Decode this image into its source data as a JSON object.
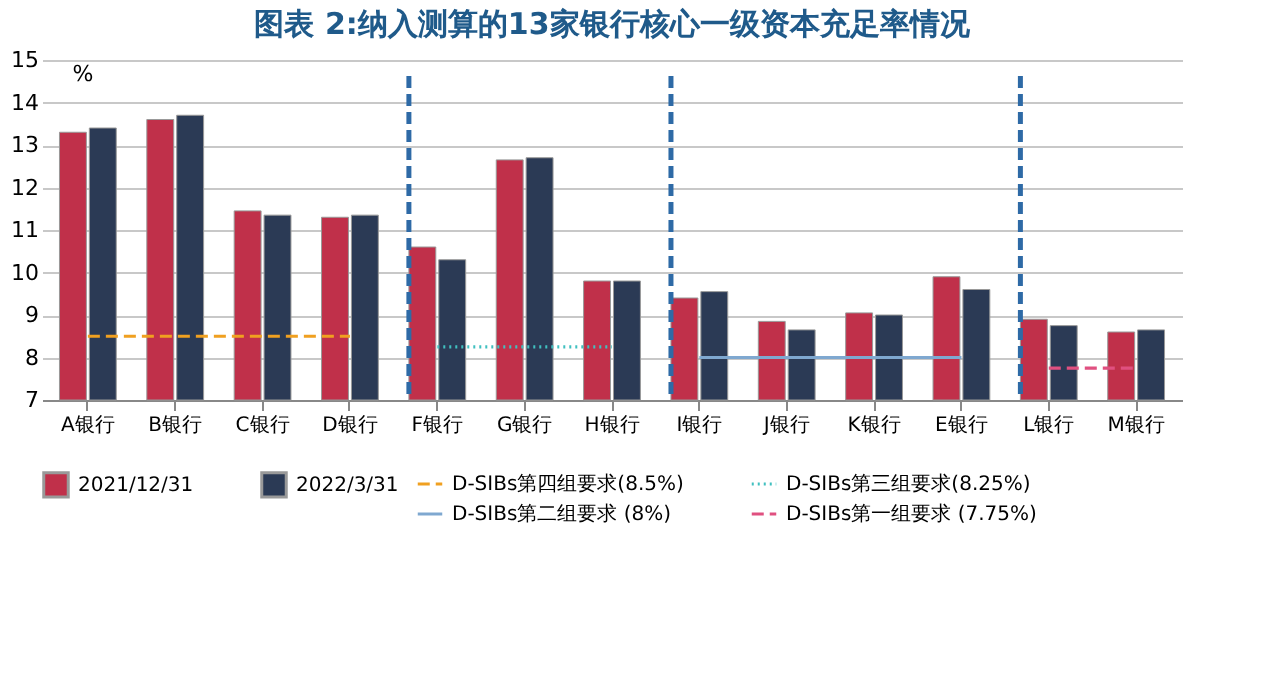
{
  "chart_data": {
    "type": "bar",
    "title": "图表 2:纳入测算的13家银行核心一级资本充足率情况",
    "ylabel": "%",
    "categories": [
      "A银行",
      "B银行",
      "C银行",
      "D银行",
      "F银行",
      "G银行",
      "H银行",
      "I银行",
      "J银行",
      "K银行",
      "E银行",
      "L银行",
      "M银行"
    ],
    "series": [
      {
        "name": "2021/12/31",
        "color": "#c0304a",
        "values": [
          13.3,
          13.6,
          11.45,
          11.3,
          10.6,
          12.65,
          9.8,
          9.4,
          8.85,
          9.05,
          9.9,
          8.9,
          8.6
        ]
      },
      {
        "name": "2022/3/31",
        "color": "#2b3a55",
        "values": [
          13.4,
          13.7,
          11.35,
          11.35,
          10.3,
          12.7,
          9.8,
          9.55,
          8.65,
          9.0,
          9.6,
          8.75,
          8.65
        ]
      },
      {
        "name": "D-SIBs第四组要求(8.5%)",
        "type": "line",
        "line_style": "dashed",
        "color": "#f0a020",
        "values": [
          8.5,
          8.5,
          8.5,
          8.5,
          null,
          null,
          null,
          null,
          null,
          null,
          null,
          null,
          null
        ]
      },
      {
        "name": "D-SIBs第三组要求(8.25%)",
        "type": "line",
        "line_style": "dotted",
        "color": "#40c0c0",
        "values": [
          null,
          null,
          null,
          null,
          8.25,
          8.25,
          8.25,
          null,
          null,
          null,
          null,
          null,
          null
        ]
      },
      {
        "name": "D-SIBs第二组要求 (8%)",
        "type": "line",
        "line_style": "solid",
        "color": "#7fa8d0",
        "values": [
          null,
          null,
          null,
          null,
          null,
          null,
          null,
          8,
          8,
          8,
          8,
          null,
          null
        ]
      },
      {
        "name": "D-SIBs第一组要求 (7.75%)",
        "type": "line",
        "line_style": "dashed",
        "color": "#e05080",
        "values": [
          null,
          null,
          null,
          null,
          null,
          null,
          null,
          null,
          null,
          null,
          null,
          7.75,
          7.75
        ]
      }
    ],
    "ref_lines": [
      {
        "axis": "x",
        "value": "F银行",
        "color": "#2e6aa6",
        "line_style": "dashed"
      },
      {
        "axis": "x",
        "value": "I银行",
        "color": "#2e6aa6",
        "line_style": "dashed"
      },
      {
        "axis": "x",
        "value": "L银行",
        "color": "#2e6aa6",
        "line_style": "dashed"
      }
    ],
    "ylim": [
      7,
      15
    ],
    "yticks": [
      7,
      8,
      9,
      10,
      11,
      12,
      13,
      14,
      15
    ],
    "grid": "y",
    "legend": "bottom"
  }
}
